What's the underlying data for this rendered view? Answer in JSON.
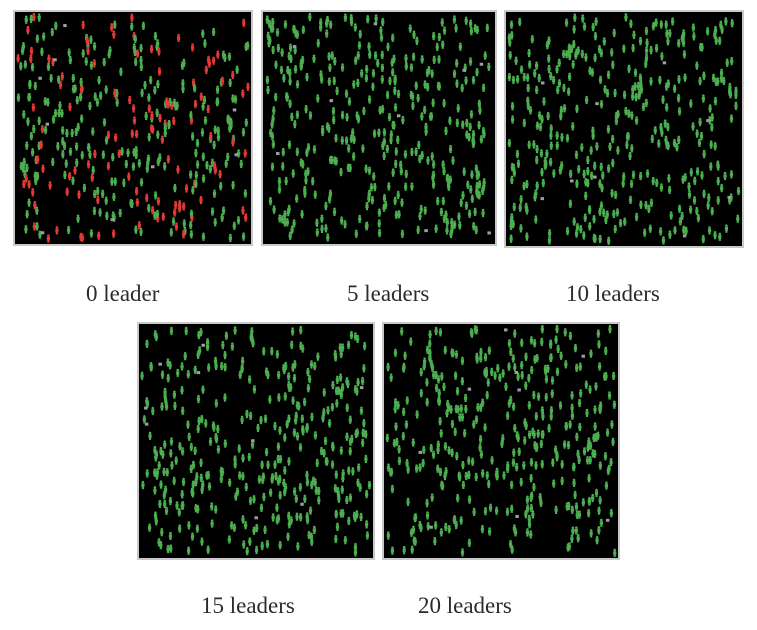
{
  "captions": {
    "p0": "0 leader",
    "p5": "5 leaders",
    "p10": "10 leaders",
    "p15": "15 leaders",
    "p20": "20 leaders"
  },
  "colors": {
    "background": "#000000",
    "follower": "#4caf50",
    "agent_red": "#e53935",
    "leader": "#9e9e9e"
  },
  "panels": [
    {
      "id": "p0",
      "red_fraction": 0.33
    },
    {
      "id": "p5",
      "red_fraction": 0.0
    },
    {
      "id": "p10",
      "red_fraction": 0.0
    },
    {
      "id": "p15",
      "red_fraction": 0.0
    },
    {
      "id": "p20",
      "red_fraction": 0.0
    }
  ]
}
